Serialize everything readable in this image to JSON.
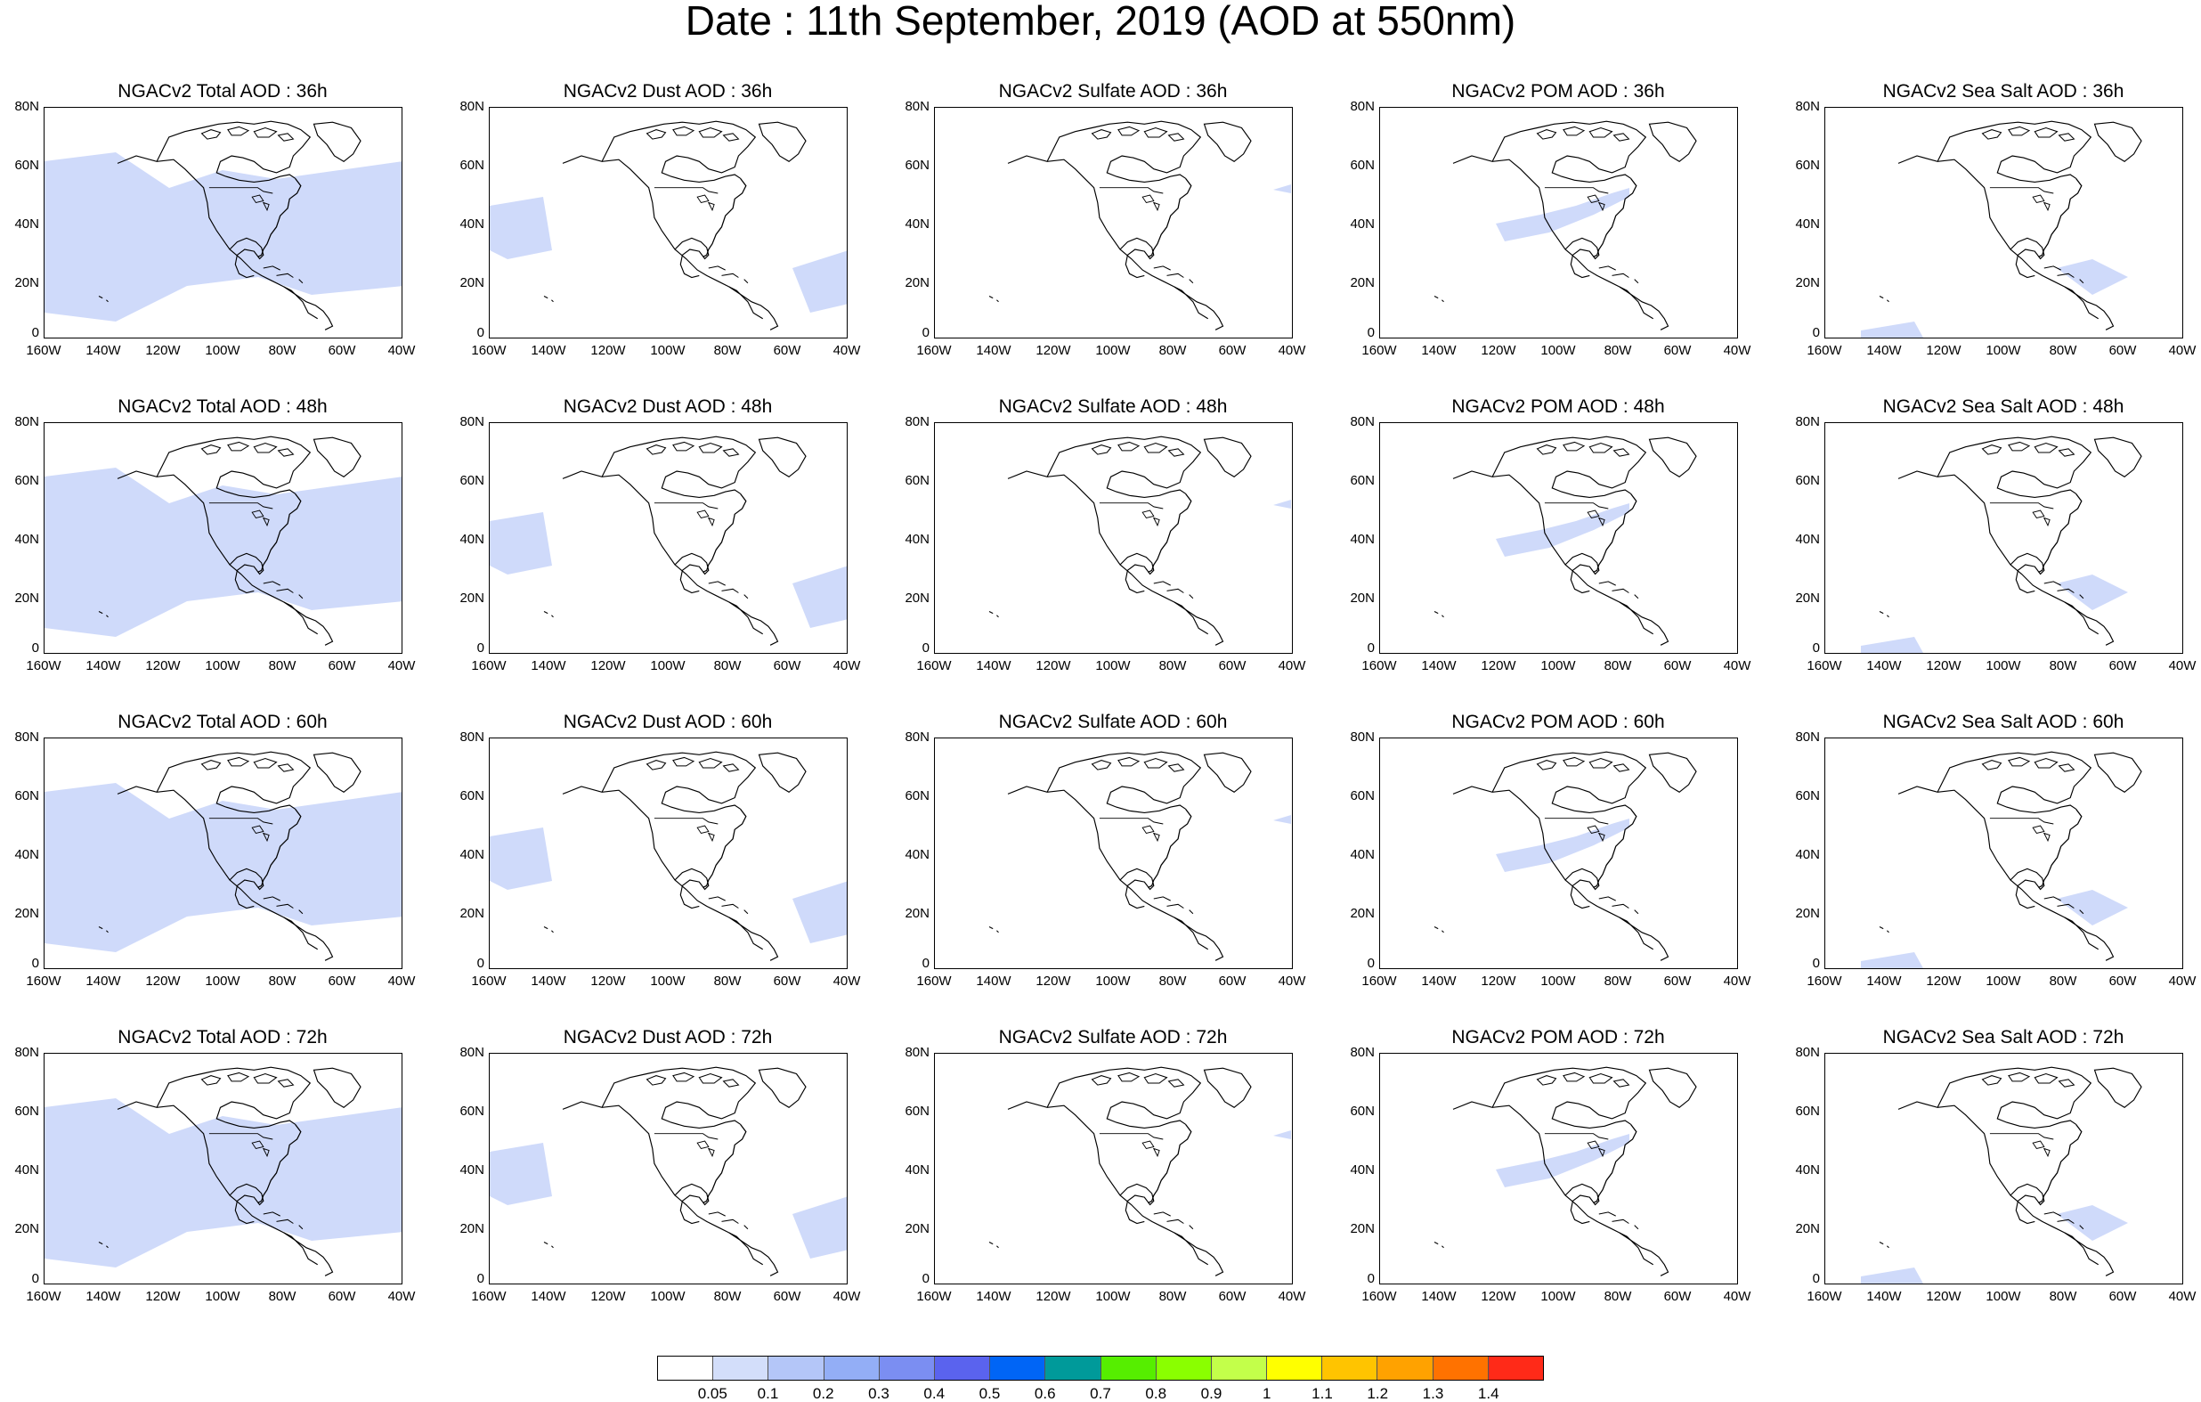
{
  "header": {
    "title": "Date : 11th September, 2019 (AOD at 550nm)"
  },
  "axes": {
    "lat_labels": [
      "80N",
      "60N",
      "40N",
      "20N",
      "0"
    ],
    "lon_labels": [
      "160W",
      "140W",
      "120W",
      "100W",
      "80W",
      "60W",
      "40W"
    ]
  },
  "panel_titles": [
    [
      "NGACv2 Total AOD : 36h",
      "NGACv2 Dust AOD : 36h",
      "NGACv2 Sulfate AOD : 36h",
      "NGACv2 POM AOD : 36h",
      "NGACv2 Sea Salt AOD : 36h"
    ],
    [
      "NGACv2 Total AOD : 48h",
      "NGACv2 Dust AOD : 48h",
      "NGACv2 Sulfate AOD : 48h",
      "NGACv2 POM AOD : 48h",
      "NGACv2 Sea Salt AOD : 48h"
    ],
    [
      "NGACv2 Total AOD : 60h",
      "NGACv2 Dust AOD : 60h",
      "NGACv2 Sulfate AOD : 60h",
      "NGACv2 POM AOD : 60h",
      "NGACv2 Sea Salt AOD : 60h"
    ],
    [
      "NGACv2 Total AOD : 72h",
      "NGACv2 Dust AOD : 72h",
      "NGACv2 Sulfate AOD : 72h",
      "NGACv2 POM AOD : 72h",
      "NGACv2 Sea Salt  AOD : 72h"
    ]
  ],
  "colorbar": {
    "labels": [
      "0.05",
      "0.1",
      "0.2",
      "0.3",
      "0.4",
      "0.5",
      "0.6",
      "0.7",
      "0.8",
      "0.9",
      "1",
      "1.1",
      "1.2",
      "1.3",
      "1.4"
    ],
    "colors": [
      "#ffffff",
      "#d3defa",
      "#b4c6f8",
      "#93aef6",
      "#7b8ef2",
      "#5a63ee",
      "#0065f6",
      "#009a9a",
      "#56ee00",
      "#8aff00",
      "#c3ff4a",
      "#ffff00",
      "#ffc400",
      "#ffa200",
      "#ff7200",
      "#ff2a18"
    ]
  },
  "map_style": {
    "aerosol_fill": "#cfdafa",
    "coastline": "#000000"
  }
}
